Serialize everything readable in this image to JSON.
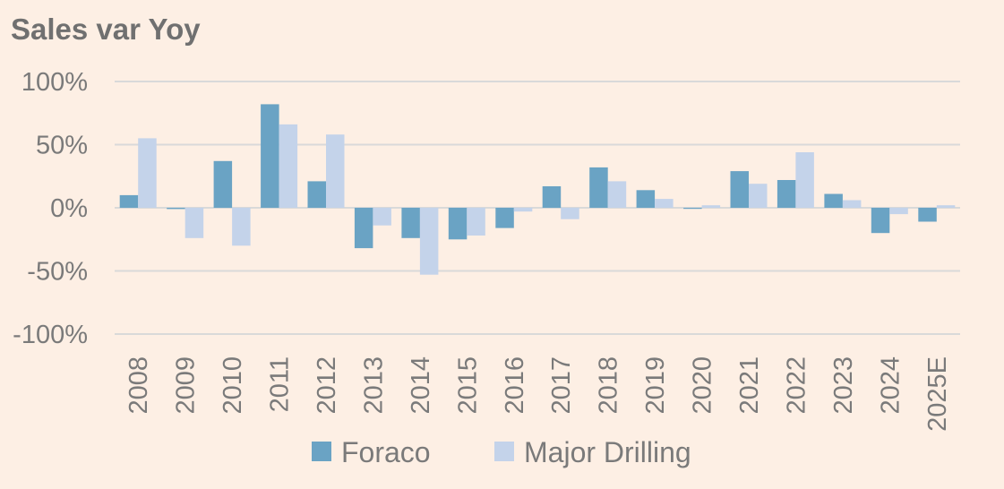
{
  "chart_data": {
    "type": "bar",
    "title": "Sales var Yoy",
    "xlabel": "",
    "ylabel": "",
    "ylim": [
      -100,
      100
    ],
    "yticks": [
      100,
      50,
      0,
      -50,
      -100
    ],
    "ytick_labels": [
      "100%",
      "50%",
      "0%",
      "-50%",
      "-100%"
    ],
    "grid": true,
    "legend_position": "bottom",
    "categories": [
      "2008",
      "2009",
      "2010",
      "2011",
      "2012",
      "2013",
      "2014",
      "2015",
      "2016",
      "2017",
      "2018",
      "2019",
      "2020",
      "2021",
      "2022",
      "2023",
      "2024",
      "2025E"
    ],
    "series": [
      {
        "name": "Foraco",
        "color": "#6aa3c4",
        "values": [
          10,
          -1,
          37,
          82,
          21,
          -32,
          -24,
          -25,
          -16,
          17,
          32,
          14,
          0,
          29,
          22,
          11,
          -20,
          -11
        ]
      },
      {
        "name": "Major Drilling",
        "color": "#c4d3ea",
        "values": [
          55,
          -24,
          -30,
          66,
          58,
          -14,
          -53,
          -22,
          -3,
          -9,
          21,
          7,
          2,
          19,
          44,
          6,
          -5,
          2
        ]
      }
    ]
  }
}
